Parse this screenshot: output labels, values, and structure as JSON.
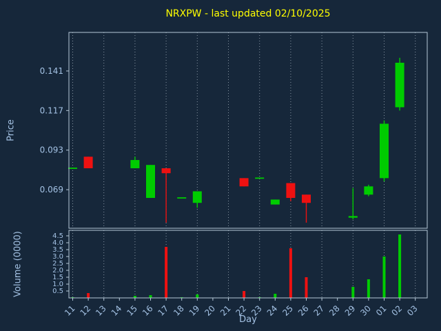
{
  "window": {
    "title": "NRXPW - last updated 02/10/2025"
  },
  "colors": {
    "background": "#16273a",
    "title": "#ffff00",
    "text": "#a4c2e4",
    "grid": "#c7d3de",
    "spine": "#b6c8d8",
    "up": "#00cc00",
    "down": "#ee1111"
  },
  "chart_data": {
    "type": "candlestick",
    "title": "NRXPW - last updated 02/10/2025",
    "xlabel": "Day",
    "panels": [
      "price",
      "volume"
    ],
    "grid": "vertical-dotted",
    "grid_every": 2,
    "x_categories": [
      "11",
      "12",
      "13",
      "14",
      "15",
      "16",
      "17",
      "18",
      "19",
      "20",
      "21",
      "22",
      "23",
      "24",
      "25",
      "26",
      "27",
      "28",
      "29",
      "30",
      "01",
      "02",
      "03"
    ],
    "price_axis": {
      "label": "Price",
      "tick_labels": [
        "0.069",
        "0.093",
        "0.117",
        "0.141"
      ],
      "min": 0.0456,
      "max": 0.1644
    },
    "volume_axis": {
      "label": "Volume (0000)",
      "tick_labels": [
        "0.5",
        "1.0",
        "1.5",
        "2.0",
        "2.5",
        "3.0",
        "3.5",
        "4.0",
        "4.5"
      ],
      "min": 0,
      "max": 4.9
    },
    "series": [
      {
        "day": "11",
        "open": 0.082,
        "high": 0.082,
        "low": 0.082,
        "close": 0.082,
        "volume": 0.05
      },
      {
        "day": "12",
        "open": 0.089,
        "high": 0.089,
        "low": 0.082,
        "close": 0.082,
        "volume": 0.35
      },
      {
        "day": "15",
        "open": 0.082,
        "high": 0.089,
        "low": 0.082,
        "close": 0.087,
        "volume": 0.15
      },
      {
        "day": "16",
        "open": 0.064,
        "high": 0.084,
        "low": 0.064,
        "close": 0.084,
        "volume": 0.2
      },
      {
        "day": "17",
        "open": 0.082,
        "high": 0.082,
        "low": 0.049,
        "close": 0.079,
        "volume": 3.7
      },
      {
        "day": "18",
        "open": 0.064,
        "high": 0.064,
        "low": 0.064,
        "close": 0.064,
        "volume": 0.05
      },
      {
        "day": "19",
        "open": 0.061,
        "high": 0.068,
        "low": 0.058,
        "close": 0.068,
        "volume": 0.25
      },
      {
        "day": "22",
        "open": 0.076,
        "high": 0.076,
        "low": 0.071,
        "close": 0.071,
        "volume": 0.5
      },
      {
        "day": "23",
        "open": 0.076,
        "high": 0.076,
        "low": 0.076,
        "close": 0.076,
        "volume": 0.05
      },
      {
        "day": "24",
        "open": 0.06,
        "high": 0.063,
        "low": 0.06,
        "close": 0.063,
        "volume": 0.3
      },
      {
        "day": "25",
        "open": 0.073,
        "high": 0.073,
        "low": 0.062,
        "close": 0.064,
        "volume": 3.6
      },
      {
        "day": "26",
        "open": 0.066,
        "high": 0.066,
        "low": 0.049,
        "close": 0.061,
        "volume": 1.5
      },
      {
        "day": "29",
        "open": 0.052,
        "high": 0.07,
        "low": 0.051,
        "close": 0.053,
        "volume": 0.8
      },
      {
        "day": "30",
        "open": 0.066,
        "high": 0.072,
        "low": 0.065,
        "close": 0.071,
        "volume": 1.35
      },
      {
        "day": "01",
        "open": 0.076,
        "high": 0.111,
        "low": 0.074,
        "close": 0.109,
        "volume": 3.0
      },
      {
        "day": "02",
        "open": 0.119,
        "high": 0.149,
        "low": 0.117,
        "close": 0.146,
        "volume": 4.6
      }
    ]
  }
}
